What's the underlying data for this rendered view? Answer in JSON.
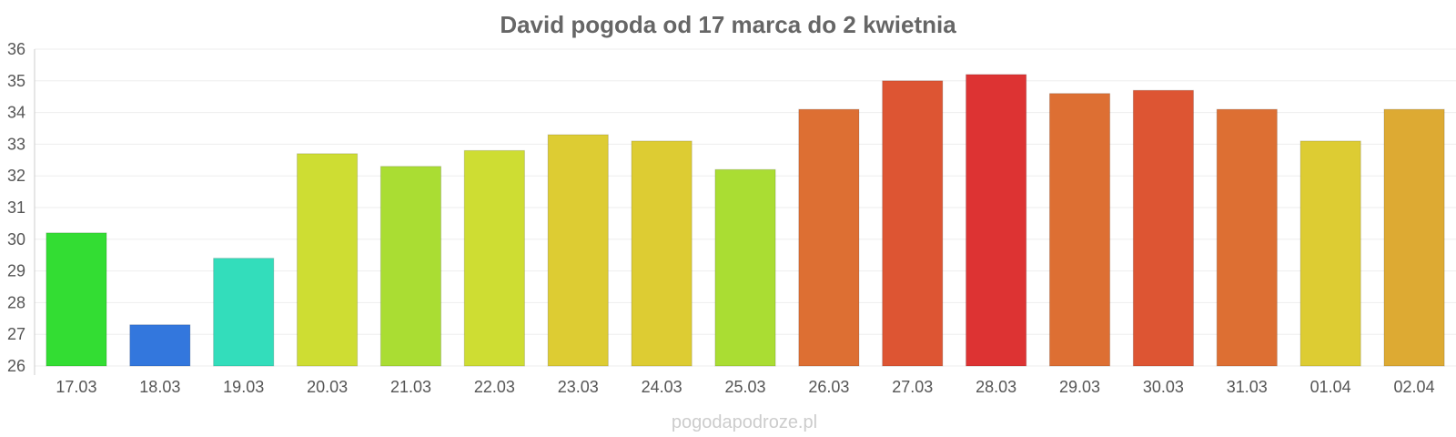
{
  "chart_data": {
    "type": "bar",
    "title": "David pogoda od 17 marca do 2 kwietnia",
    "xlabel": "",
    "ylabel": "",
    "ylim": [
      26,
      36
    ],
    "yticks": [
      "26",
      "27",
      "28",
      "29",
      "30",
      "31",
      "32",
      "33",
      "34",
      "35",
      "36"
    ],
    "grid": true,
    "categories": [
      "17.03",
      "18.03",
      "19.03",
      "20.03",
      "21.03",
      "22.03",
      "23.03",
      "24.03",
      "25.03",
      "26.03",
      "27.03",
      "28.03",
      "29.03",
      "30.03",
      "31.03",
      "01.04",
      "02.04"
    ],
    "values": [
      30.2,
      27.3,
      29.4,
      32.7,
      32.3,
      32.8,
      33.3,
      33.1,
      32.2,
      34.1,
      35.0,
      35.2,
      34.6,
      34.7,
      34.1,
      33.1,
      34.1
    ],
    "colors": [
      "#33dd33",
      "#3377dd",
      "#33ddbb",
      "#cedd33",
      "#aadd33",
      "#cedd33",
      "#ddcc33",
      "#ddcc33",
      "#aadd33",
      "#dd6f33",
      "#dd5533",
      "#dd3333",
      "#dd6f33",
      "#dd5533",
      "#dd6f33",
      "#ddcc33",
      "#ddaa33"
    ]
  },
  "watermark": "pogodapodroze.pl"
}
